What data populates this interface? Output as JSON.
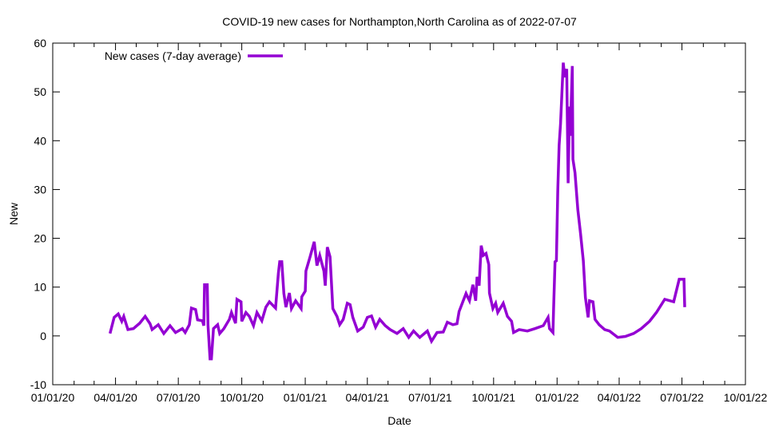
{
  "chart_data": {
    "type": "line",
    "title": "COVID-19 new cases for Northampton,North Carolina as of 2022-07-07",
    "xlabel": "Date",
    "ylabel": "New",
    "xlim": [
      "2020-01-01",
      "2022-10-01"
    ],
    "ylim": [
      -10,
      60
    ],
    "yticks": [
      -10,
      0,
      10,
      20,
      30,
      40,
      50,
      60
    ],
    "xticks": [
      {
        "date": "2020-01-01",
        "label": "01/01/20"
      },
      {
        "date": "2020-04-01",
        "label": "04/01/20"
      },
      {
        "date": "2020-07-01",
        "label": "07/01/20"
      },
      {
        "date": "2020-10-01",
        "label": "10/01/20"
      },
      {
        "date": "2021-01-01",
        "label": "01/01/21"
      },
      {
        "date": "2021-04-01",
        "label": "04/01/21"
      },
      {
        "date": "2021-07-01",
        "label": "07/01/21"
      },
      {
        "date": "2021-10-01",
        "label": "10/01/21"
      },
      {
        "date": "2022-01-01",
        "label": "01/01/22"
      },
      {
        "date": "2022-04-01",
        "label": "04/01/22"
      },
      {
        "date": "2022-07-01",
        "label": "07/01/22"
      },
      {
        "date": "2022-10-01",
        "label": "10/01/22"
      }
    ],
    "grid": false,
    "legend_position": "top-left",
    "series": [
      {
        "name": "New cases (7-day average)",
        "color": "#9400d3",
        "points": [
          [
            "2020-03-24",
            0.5
          ],
          [
            "2020-03-30",
            3.8
          ],
          [
            "2020-04-05",
            4.5
          ],
          [
            "2020-04-10",
            3
          ],
          [
            "2020-04-13",
            4
          ],
          [
            "2020-04-19",
            1.3
          ],
          [
            "2020-04-27",
            1.5
          ],
          [
            "2020-05-06",
            2.6
          ],
          [
            "2020-05-14",
            4
          ],
          [
            "2020-05-21",
            2.5
          ],
          [
            "2020-05-24",
            1.3
          ],
          [
            "2020-06-02",
            2.3
          ],
          [
            "2020-06-10",
            0.5
          ],
          [
            "2020-06-19",
            2.1
          ],
          [
            "2020-06-27",
            0.7
          ],
          [
            "2020-07-07",
            1.5
          ],
          [
            "2020-07-11",
            0.7
          ],
          [
            "2020-07-17",
            2.3
          ],
          [
            "2020-07-20",
            5.7
          ],
          [
            "2020-07-26",
            5.4
          ],
          [
            "2020-07-29",
            3.3
          ],
          [
            "2020-08-05",
            3.1
          ],
          [
            "2020-08-07",
            2.1
          ],
          [
            "2020-08-08",
            10.5
          ],
          [
            "2020-08-12",
            10.5
          ],
          [
            "2020-08-13",
            2.3
          ],
          [
            "2020-08-16",
            -4.7
          ],
          [
            "2020-08-18",
            -4.7
          ],
          [
            "2020-08-21",
            1.5
          ],
          [
            "2020-08-27",
            2.3
          ],
          [
            "2020-08-30",
            0.5
          ],
          [
            "2020-09-05",
            1.5
          ],
          [
            "2020-09-13",
            3.4
          ],
          [
            "2020-09-16",
            4.8
          ],
          [
            "2020-09-22",
            2.6
          ],
          [
            "2020-09-24",
            7.5
          ],
          [
            "2020-09-30",
            7
          ],
          [
            "2020-10-01",
            3
          ],
          [
            "2020-10-07",
            4.8
          ],
          [
            "2020-10-12",
            4
          ],
          [
            "2020-10-18",
            2.1
          ],
          [
            "2020-10-23",
            4.8
          ],
          [
            "2020-10-30",
            3.1
          ],
          [
            "2020-11-05",
            5.9
          ],
          [
            "2020-11-10",
            7
          ],
          [
            "2020-11-19",
            5.7
          ],
          [
            "2020-11-23",
            12.8
          ],
          [
            "2020-11-25",
            15.2
          ],
          [
            "2020-11-28",
            15.2
          ],
          [
            "2020-12-01",
            8.7
          ],
          [
            "2020-12-04",
            5.9
          ],
          [
            "2020-12-09",
            8.8
          ],
          [
            "2020-12-12",
            5.6
          ],
          [
            "2020-12-18",
            7.2
          ],
          [
            "2020-12-26",
            5.6
          ],
          [
            "2020-12-27",
            8
          ],
          [
            "2021-01-01",
            9.2
          ],
          [
            "2021-01-02",
            13.3
          ],
          [
            "2021-01-08",
            16.2
          ],
          [
            "2021-01-14",
            19.3
          ],
          [
            "2021-01-18",
            14.4
          ],
          [
            "2021-01-22",
            16.5
          ],
          [
            "2021-01-28",
            13.3
          ],
          [
            "2021-01-30",
            10.3
          ],
          [
            "2021-02-02",
            18.2
          ],
          [
            "2021-02-06",
            16.2
          ],
          [
            "2021-02-10",
            5.6
          ],
          [
            "2021-02-16",
            4
          ],
          [
            "2021-02-20",
            2.3
          ],
          [
            "2021-02-25",
            3.4
          ],
          [
            "2021-03-03",
            6.7
          ],
          [
            "2021-03-07",
            6.4
          ],
          [
            "2021-03-11",
            3.8
          ],
          [
            "2021-03-18",
            1
          ],
          [
            "2021-03-26",
            1.8
          ],
          [
            "2021-04-01",
            3.8
          ],
          [
            "2021-04-07",
            4.1
          ],
          [
            "2021-04-13",
            1.8
          ],
          [
            "2021-04-19",
            3.4
          ],
          [
            "2021-04-27",
            2.1
          ],
          [
            "2021-05-04",
            1.3
          ],
          [
            "2021-05-14",
            0.5
          ],
          [
            "2021-05-23",
            1.5
          ],
          [
            "2021-05-31",
            -0.3
          ],
          [
            "2021-06-07",
            1
          ],
          [
            "2021-06-16",
            -0.3
          ],
          [
            "2021-06-27",
            1
          ],
          [
            "2021-07-03",
            -1.1
          ],
          [
            "2021-07-11",
            0.7
          ],
          [
            "2021-07-20",
            0.8
          ],
          [
            "2021-07-26",
            2.8
          ],
          [
            "2021-08-03",
            2.3
          ],
          [
            "2021-08-09",
            2.5
          ],
          [
            "2021-08-12",
            5
          ],
          [
            "2021-08-18",
            7.2
          ],
          [
            "2021-08-22",
            8.7
          ],
          [
            "2021-08-27",
            7.2
          ],
          [
            "2021-09-01",
            10.5
          ],
          [
            "2021-09-05",
            7.2
          ],
          [
            "2021-09-07",
            12.1
          ],
          [
            "2021-09-10",
            10.3
          ],
          [
            "2021-09-13",
            18.5
          ],
          [
            "2021-09-16",
            16.5
          ],
          [
            "2021-09-20",
            16.9
          ],
          [
            "2021-09-24",
            14.6
          ],
          [
            "2021-09-25",
            8.8
          ],
          [
            "2021-09-30",
            5.6
          ],
          [
            "2021-10-04",
            6.7
          ],
          [
            "2021-10-07",
            4.8
          ],
          [
            "2021-10-15",
            6.7
          ],
          [
            "2021-10-21",
            4
          ],
          [
            "2021-10-27",
            3
          ],
          [
            "2021-10-30",
            0.7
          ],
          [
            "2021-11-07",
            1.3
          ],
          [
            "2021-11-19",
            1
          ],
          [
            "2021-11-30",
            1.5
          ],
          [
            "2021-12-12",
            2.1
          ],
          [
            "2021-12-19",
            3.8
          ],
          [
            "2021-12-21",
            1.5
          ],
          [
            "2021-12-26",
            0.7
          ],
          [
            "2021-12-27",
            5.6
          ],
          [
            "2021-12-29",
            15.2
          ],
          [
            "2021-12-31",
            15.4
          ],
          [
            "2022-01-02",
            29.6
          ],
          [
            "2022-01-04",
            39
          ],
          [
            "2022-01-06",
            43.5
          ],
          [
            "2022-01-10",
            56
          ],
          [
            "2022-01-12",
            53
          ],
          [
            "2022-01-15",
            54.7
          ],
          [
            "2022-01-17",
            31.3
          ],
          [
            "2022-01-19",
            47
          ],
          [
            "2022-01-20",
            41
          ],
          [
            "2022-01-23",
            55.3
          ],
          [
            "2022-01-24",
            36.2
          ],
          [
            "2022-01-27",
            33.4
          ],
          [
            "2022-01-31",
            25.9
          ],
          [
            "2022-02-04",
            21
          ],
          [
            "2022-02-08",
            15.4
          ],
          [
            "2022-02-11",
            7.9
          ],
          [
            "2022-02-15",
            3.8
          ],
          [
            "2022-02-17",
            7.2
          ],
          [
            "2022-02-22",
            7
          ],
          [
            "2022-02-25",
            3.4
          ],
          [
            "2022-03-03",
            2.3
          ],
          [
            "2022-03-11",
            1.3
          ],
          [
            "2022-03-18",
            1
          ],
          [
            "2022-03-30",
            -0.3
          ],
          [
            "2022-04-10",
            -0.1
          ],
          [
            "2022-04-22",
            0.5
          ],
          [
            "2022-05-03",
            1.5
          ],
          [
            "2022-05-15",
            3
          ],
          [
            "2022-05-25",
            4.8
          ],
          [
            "2022-06-06",
            7.5
          ],
          [
            "2022-06-19",
            7
          ],
          [
            "2022-06-27",
            11.6
          ],
          [
            "2022-07-04",
            11.6
          ],
          [
            "2022-07-05",
            5.9
          ]
        ]
      }
    ]
  }
}
